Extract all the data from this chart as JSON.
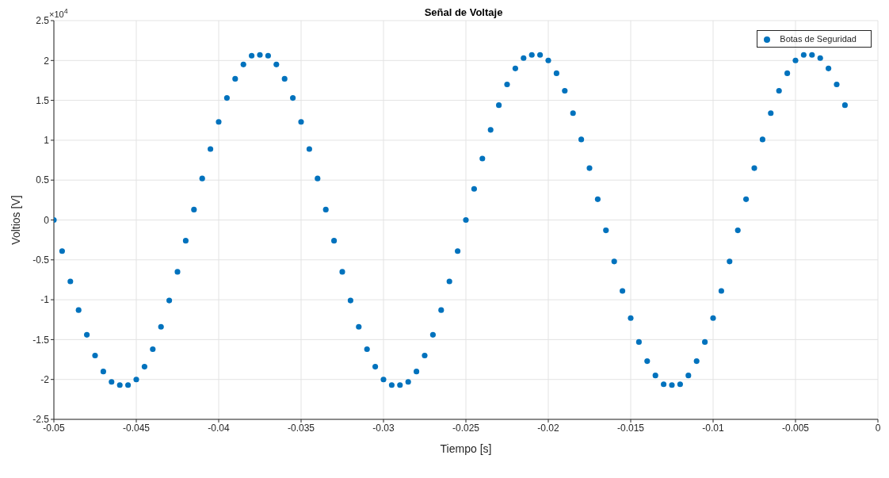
{
  "chart_data": {
    "type": "scatter",
    "title": "Señal de Voltaje",
    "xlabel": "Tiempo [s]",
    "ylabel": "Voltios [V]",
    "annotations": [
      "×10$^{4}$"
    ],
    "x": [
      -0.05,
      -0.0495,
      -0.049,
      -0.0485,
      -0.048,
      -0.0475,
      -0.047,
      -0.0465,
      -0.046,
      -0.0455,
      -0.045,
      -0.0445,
      -0.044,
      -0.0435,
      -0.043,
      -0.0425,
      -0.042,
      -0.0415,
      -0.041,
      -0.0405,
      -0.04,
      -0.0395,
      -0.039,
      -0.0385,
      -0.038,
      -0.0375,
      -0.037,
      -0.0365,
      -0.036,
      -0.0355,
      -0.035,
      -0.0345,
      -0.034,
      -0.0335,
      -0.033,
      -0.0325,
      -0.032,
      -0.0315,
      -0.031,
      -0.0305,
      -0.03,
      -0.0295,
      -0.029,
      -0.0285,
      -0.028,
      -0.0275,
      -0.027,
      -0.0265,
      -0.026,
      -0.0255,
      -0.025,
      -0.0245,
      -0.024,
      -0.0235,
      -0.023,
      -0.0225,
      -0.022,
      -0.0215,
      -0.021,
      -0.0205,
      -0.02,
      -0.0195,
      -0.019,
      -0.0185,
      -0.018,
      -0.0175,
      -0.017,
      -0.0165,
      -0.016,
      -0.0155,
      -0.015,
      -0.0145,
      -0.014,
      -0.0135,
      -0.013,
      -0.0125,
      -0.012,
      -0.0115,
      -0.011,
      -0.0105,
      -0.01,
      -0.0095,
      -0.009,
      -0.0085,
      -0.008,
      -0.0075,
      -0.007,
      -0.0065,
      -0.006,
      -0.0055,
      -0.005,
      -0.0045,
      -0.004,
      -0.0035,
      -0.003,
      -0.0025,
      -0.002
    ],
    "series": [
      {
        "name": "Botas de Seguridad",
        "color": "#0072bd",
        "values": [
          0,
          -0.39,
          -0.77,
          -1.13,
          -1.44,
          -1.7,
          -1.9,
          -2.03,
          -2.07,
          -2.07,
          -2,
          -1.84,
          -1.62,
          -1.34,
          -1.01,
          -0.65,
          -0.26,
          0.13,
          0.52,
          0.89,
          1.23,
          1.53,
          1.77,
          1.95,
          2.06,
          2.07,
          2.06,
          1.95,
          1.77,
          1.53,
          1.23,
          0.89,
          0.52,
          0.13,
          -0.26,
          -0.65,
          -1.01,
          -1.34,
          -1.62,
          -1.84,
          -2,
          -2.07,
          -2.07,
          -2.03,
          -1.9,
          -1.7,
          -1.44,
          -1.13,
          -0.77,
          -0.39,
          0,
          0.39,
          0.77,
          1.13,
          1.44,
          1.7,
          1.9,
          2.03,
          2.07,
          2.07,
          2,
          1.84,
          1.62,
          1.34,
          1.01,
          0.65,
          0.26,
          -0.13,
          -0.52,
          -0.89,
          -1.23,
          -1.53,
          -1.77,
          -1.95,
          -2.06,
          -2.07,
          -2.06,
          -1.95,
          -1.77,
          -1.53,
          -1.23,
          -0.89,
          -0.52,
          -0.13,
          0.26,
          0.65,
          1.01,
          1.34,
          1.62,
          1.84,
          2,
          2.07,
          2.07,
          2.03,
          1.9,
          1.7,
          1.44
        ]
      }
    ],
    "xlim": [
      -0.05,
      0
    ],
    "xticks": [
      -0.05,
      -0.045,
      -0.04,
      -0.035,
      -0.03,
      -0.025,
      -0.02,
      -0.015,
      -0.01,
      -0.005,
      0
    ],
    "ylim": [
      -2.5,
      2.5
    ],
    "yticks": [
      -2.5,
      -2,
      -1.5,
      -1,
      -0.5,
      0,
      0.5,
      1,
      1.5,
      2,
      2.5
    ],
    "grid": true,
    "legend": "top right",
    "marker": "circle"
  }
}
